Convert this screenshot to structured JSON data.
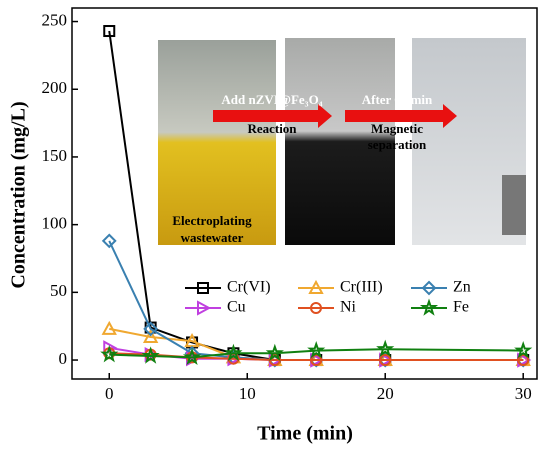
{
  "chart_data": {
    "type": "line",
    "x_label": "Time (min)",
    "y_label": "Concentration (mg/L)",
    "x": [
      0,
      3,
      6,
      9,
      12,
      15,
      20,
      30
    ],
    "xlim": [
      -2.7,
      31
    ],
    "ylim": [
      -14,
      260
    ],
    "xticks": [
      0,
      10,
      20,
      30
    ],
    "yticks": [
      0,
      50,
      100,
      150,
      200,
      250
    ],
    "series": [
      {
        "name": "Cr(VI)",
        "color": "#000000",
        "marker": "square",
        "values": [
          243,
          24,
          13,
          5,
          0,
          0,
          0,
          0
        ]
      },
      {
        "name": "Cr(III)",
        "color": "#f0a830",
        "marker": "triangle",
        "values": [
          23,
          17,
          14,
          2,
          0,
          0,
          0,
          0
        ]
      },
      {
        "name": "Zn",
        "color": "#3a80b0",
        "marker": "diamond",
        "values": [
          88,
          23,
          5,
          2,
          0,
          0,
          0,
          0
        ]
      },
      {
        "name": "Cu",
        "color": "#c040e0",
        "marker": "right-triangle",
        "values": [
          9,
          4,
          1,
          1,
          0,
          0,
          0,
          0
        ]
      },
      {
        "name": "Ni",
        "color": "#e05020",
        "marker": "circle",
        "values": [
          5,
          4,
          2,
          1,
          0,
          0,
          0,
          0
        ]
      },
      {
        "name": "Fe",
        "color": "#108010",
        "marker": "star",
        "values": [
          4,
          3,
          2,
          5,
          5,
          7,
          8,
          7
        ]
      }
    ],
    "annotations": {
      "photo1": [
        "Electroplating",
        "wastewater"
      ],
      "step1": [
        "Add nZVI@Fe₃O₄",
        "Reaction"
      ],
      "step2": [
        "After 60 min",
        "Magnetic",
        "separation"
      ]
    }
  }
}
